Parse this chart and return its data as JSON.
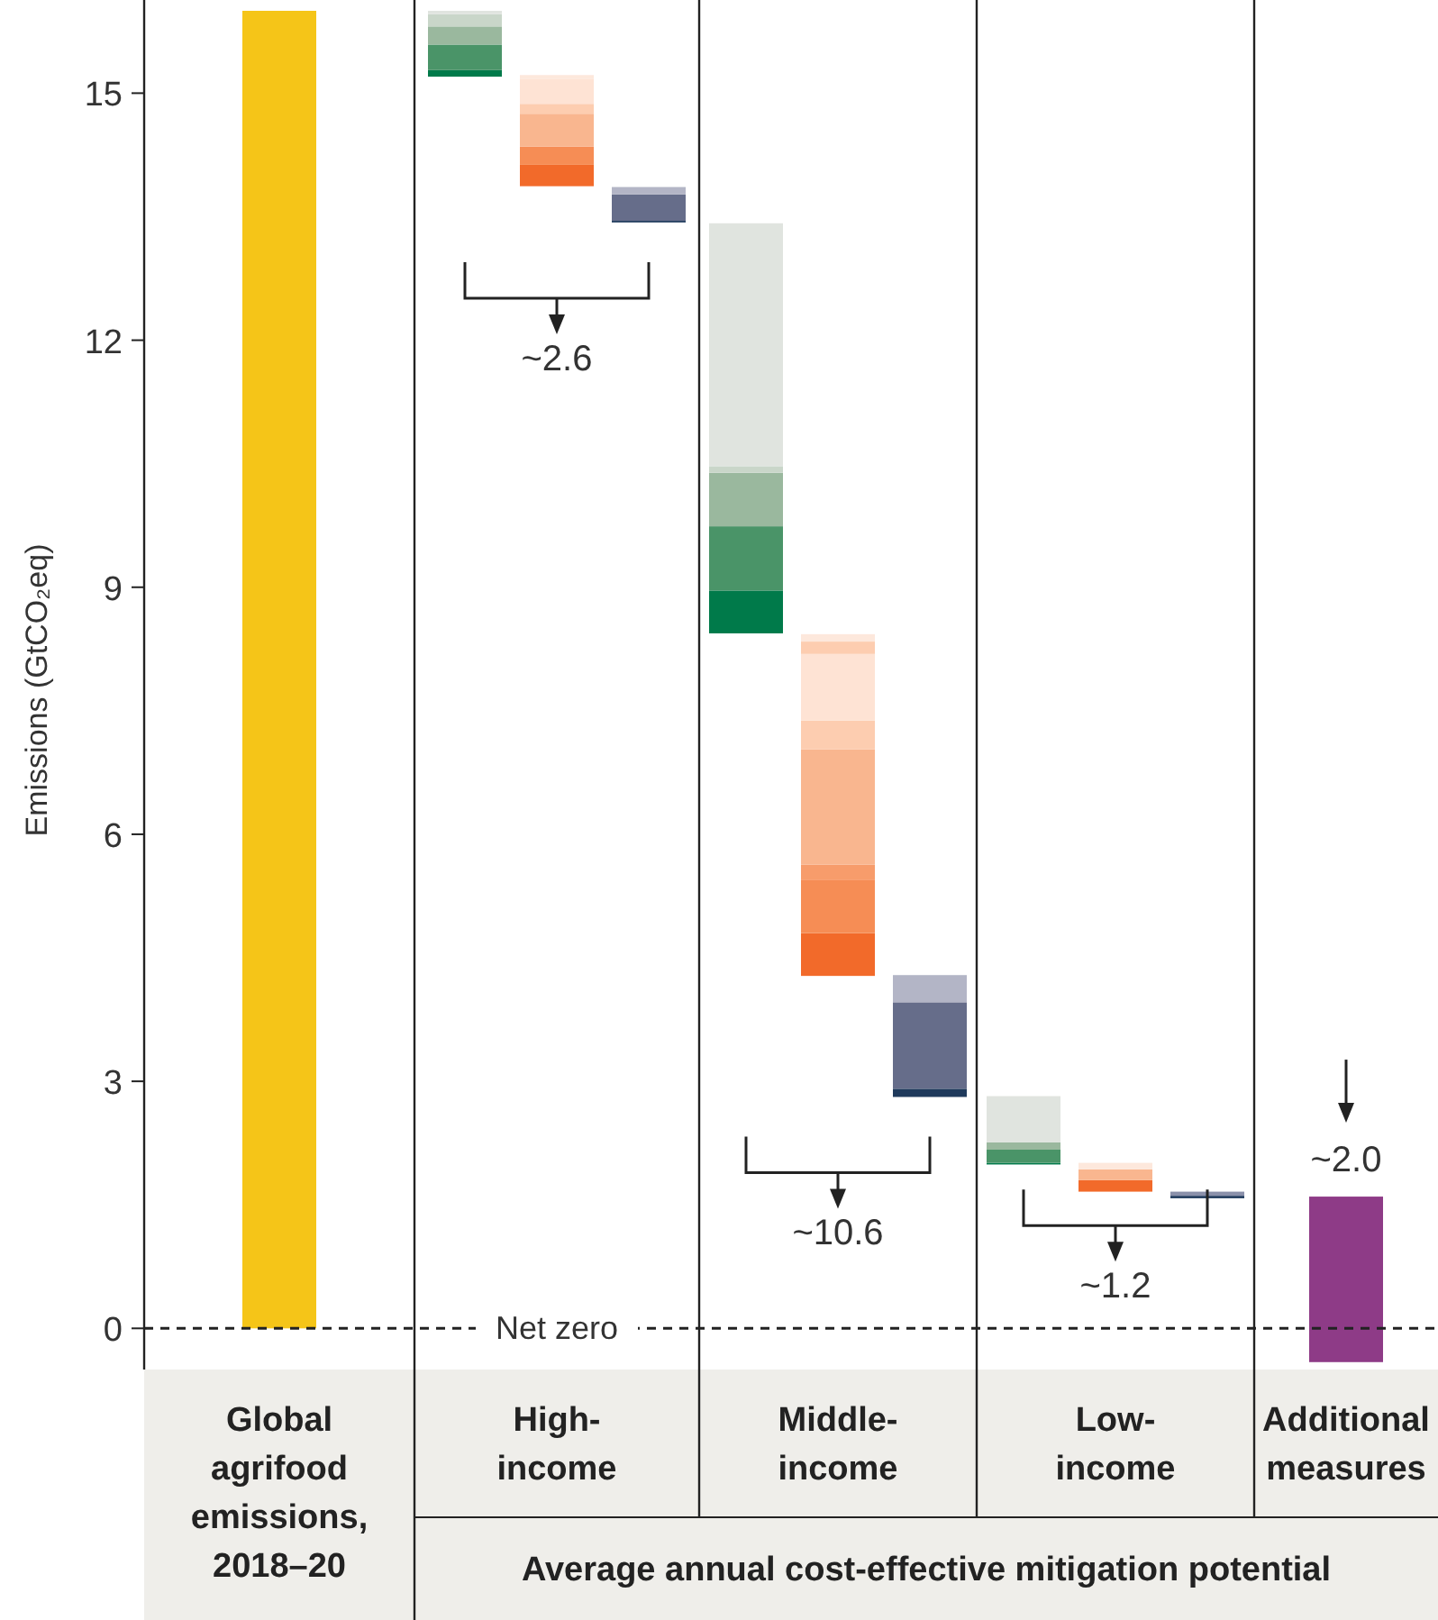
{
  "chart_data": {
    "type": "bar",
    "ylabel": "Emissions (GtCO₂eq)",
    "xlabel": "Average annual cost-effective mitigation potential",
    "categories": [
      "Global agrifood emissions, 2018–20",
      null,
      "High-income",
      null,
      null,
      "Middle-income",
      null,
      null,
      "Low-income",
      null,
      "Additional measures"
    ],
    "ylim": [
      -0.5,
      16
    ],
    "yticks": [
      0,
      3,
      6,
      9,
      12,
      15
    ],
    "series": [
      {
        "colors": [
          "#f5c518",
          "#007a4a",
          "#f26a2a",
          "#1f3a5c",
          "#007a4a",
          "#f26a2a",
          "#1f3a5c",
          "#007a4a",
          "#f26a2a",
          "#1f3a5c",
          "#8e3b87"
        ],
        "base": [
          0,
          15.2,
          13.87,
          13.43,
          8.44,
          4.28,
          2.81,
          1.99,
          1.66,
          1.58,
          -0.41
        ],
        "values": [
          16.0,
          0.08,
          0.26,
          0.02,
          0.52,
          0.52,
          0.1,
          0.02,
          0.14,
          0.03,
          2.01
        ]
      },
      {
        "colors": [
          null,
          "#4a9468",
          "#f68d55",
          "#666d8a",
          "#4a9468",
          "#f68d55",
          "#666d8a",
          "#4a9468",
          "#f9b68f",
          "#8a90aa",
          null
        ],
        "base": [
          null,
          15.28,
          14.13,
          13.45,
          8.96,
          4.8,
          2.91,
          2.01,
          1.8,
          1.61,
          null
        ],
        "values": [
          null,
          0.31,
          0.22,
          0.32,
          0.78,
          0.65,
          1.05,
          0.16,
          0.13,
          0.05,
          null
        ]
      },
      {
        "colors": [
          null,
          "#9ab89e",
          "#f9b68f",
          "#b3b5c6",
          "#9ab89e",
          "#f79c6b",
          "#b3b5c6",
          "#9ab89e",
          "#fde8dc",
          null,
          null
        ],
        "base": [
          null,
          15.59,
          14.35,
          13.77,
          9.74,
          5.45,
          3.96,
          2.17,
          1.93,
          null,
          null
        ],
        "values": [
          null,
          0.22,
          0.4,
          0.09,
          0.65,
          0.18,
          0.33,
          0.09,
          0.08,
          null,
          null
        ]
      },
      {
        "colors": [
          null,
          "#c9d6c9",
          "#fdcdb0",
          null,
          "#c9d6c9",
          "#f9b68f",
          null,
          "#e0e4df",
          null,
          null,
          null
        ],
        "base": [
          null,
          15.81,
          14.75,
          null,
          10.39,
          5.63,
          null,
          2.26,
          null,
          null,
          null
        ],
        "values": [
          null,
          0.15,
          0.12,
          null,
          0.08,
          1.4,
          null,
          0.56,
          null,
          null,
          null
        ]
      },
      {
        "colors": [
          null,
          "#e0e4df",
          "#fee3d4",
          null,
          "#e0e4df",
          "#fdcdb0",
          null,
          null,
          null,
          null,
          null
        ],
        "base": [
          null,
          15.96,
          14.87,
          null,
          10.47,
          7.03,
          null,
          null,
          null,
          null,
          null
        ],
        "values": [
          null,
          0.04,
          0.3,
          null,
          2.95,
          0.35,
          null,
          null,
          null,
          null,
          null
        ]
      },
      {
        "colors": [
          null,
          null,
          "#fde8dc",
          null,
          null,
          "#fee3d4",
          null,
          null,
          null,
          null,
          null
        ],
        "base": [
          null,
          null,
          15.17,
          null,
          null,
          7.38,
          null,
          null,
          null,
          null,
          null
        ],
        "values": [
          null,
          null,
          0.05,
          null,
          null,
          0.81,
          null,
          null,
          null,
          null,
          null
        ]
      },
      {
        "colors": [
          null,
          null,
          null,
          null,
          null,
          "#fdcdb0",
          null,
          null,
          null,
          null,
          null
        ],
        "base": [
          null,
          null,
          null,
          null,
          null,
          8.19,
          null,
          null,
          null,
          null,
          null
        ],
        "values": [
          null,
          null,
          null,
          null,
          null,
          0.15,
          null,
          null,
          null,
          null,
          null
        ]
      },
      {
        "colors": [
          null,
          null,
          null,
          null,
          null,
          "#fde8dc",
          null,
          null,
          null,
          null,
          null
        ],
        "base": [
          null,
          null,
          null,
          null,
          null,
          8.34,
          null,
          null,
          null,
          null,
          null
        ],
        "values": [
          null,
          null,
          null,
          null,
          null,
          0.09,
          null,
          null,
          null,
          null,
          null
        ]
      }
    ],
    "ref_lines": [
      {
        "axis": "y",
        "value": 0,
        "label": "Net zero",
        "line_style": "dashed",
        "color": "#222222"
      }
    ],
    "annotations": [
      "~2.6",
      "~10.6",
      "~1.2",
      "~2.0"
    ]
  }
}
